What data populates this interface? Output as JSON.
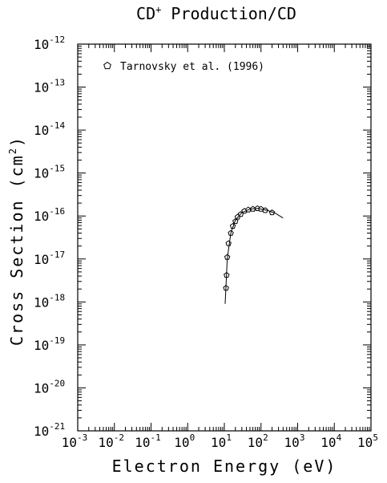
{
  "chart_data": {
    "type": "scatter",
    "title_parts": [
      "CD",
      "+",
      " Production/CD"
    ],
    "x_label": "Electron Energy (eV)",
    "y_label_parts": [
      "Cross Section (cm",
      "2",
      ")"
    ],
    "log_x": true,
    "log_y": true,
    "xlim": [
      0.001,
      100000
    ],
    "ylim": [
      1e-21,
      1e-12
    ],
    "xticks": [
      {
        "value": 0.001,
        "label": "10",
        "exp": "-3"
      },
      {
        "value": 0.01,
        "label": "10",
        "exp": "-2"
      },
      {
        "value": 0.1,
        "label": "10",
        "exp": "-1"
      },
      {
        "value": 1,
        "label": "10",
        "exp": "0"
      },
      {
        "value": 10,
        "label": "10",
        "exp": "1"
      },
      {
        "value": 100,
        "label": "10",
        "exp": "2"
      },
      {
        "value": 1000,
        "label": "10",
        "exp": "3"
      },
      {
        "value": 10000,
        "label": "10",
        "exp": "4"
      },
      {
        "value": 100000,
        "label": "10",
        "exp": "5"
      }
    ],
    "yticks": [
      {
        "value": 1e-21,
        "label": "10",
        "exp": "-21"
      },
      {
        "value": 1e-20,
        "label": "10",
        "exp": "-20"
      },
      {
        "value": 1e-19,
        "label": "10",
        "exp": "-19"
      },
      {
        "value": 1e-18,
        "label": "10",
        "exp": "-18"
      },
      {
        "value": 1e-17,
        "label": "10",
        "exp": "-17"
      },
      {
        "value": 1e-16,
        "label": "10",
        "exp": "-16"
      },
      {
        "value": 1e-15,
        "label": "10",
        "exp": "-15"
      },
      {
        "value": 1e-14,
        "label": "10",
        "exp": "-14"
      },
      {
        "value": 1e-13,
        "label": "10",
        "exp": "-13"
      },
      {
        "value": 1e-12,
        "label": "10",
        "exp": "-12"
      }
    ],
    "legend": "upper left",
    "series": [
      {
        "name": "Tarnovsky et al. (1996)",
        "color": "#000000",
        "marker": "pentagon",
        "x": [
          11.1,
          11.5,
          12,
          13,
          15,
          17,
          20,
          23,
          28,
          35,
          45,
          60,
          80,
          100,
          130,
          200
        ],
        "values": [
          2.1e-18,
          4.2e-18,
          1.1e-17,
          2.3e-17,
          4e-17,
          5.8e-17,
          7.5e-17,
          9.5e-17,
          1.1e-16,
          1.3e-16,
          1.4e-16,
          1.45e-16,
          1.5e-16,
          1.45e-16,
          1.35e-16,
          1.2e-16
        ]
      },
      {
        "color": "#000000",
        "marker": "line",
        "x": [
          10.5,
          11,
          12,
          15,
          20,
          30,
          50,
          80,
          150,
          250,
          400
        ],
        "values": [
          9e-19,
          2e-18,
          1e-17,
          4e-17,
          8e-17,
          1.2e-16,
          1.45e-16,
          1.5e-16,
          1.35e-16,
          1.15e-16,
          9e-17
        ]
      }
    ]
  }
}
